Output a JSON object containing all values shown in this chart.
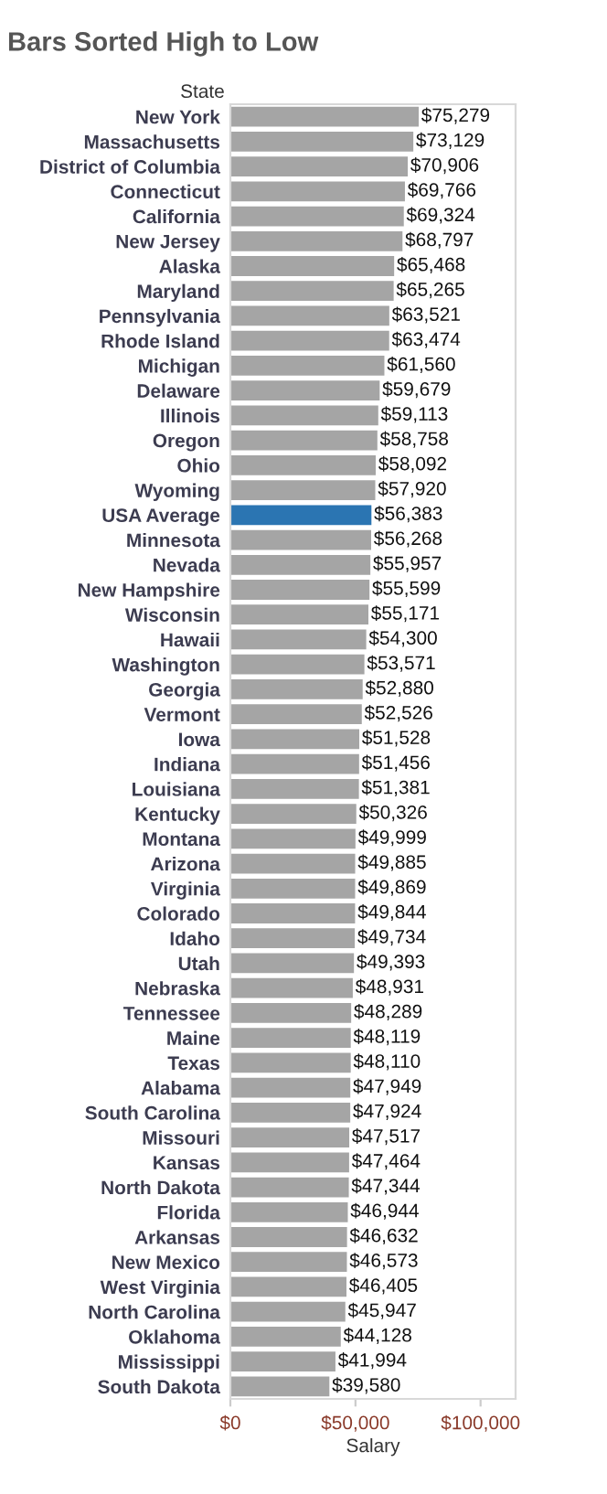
{
  "chart_data": {
    "type": "bar",
    "orientation": "horizontal",
    "title": "Bars Sorted High to Low",
    "ylabel": "State",
    "xlabel": "Salary",
    "categories": [
      "New York",
      "Massachusetts",
      "District of Columbia",
      "Connecticut",
      "California",
      "New Jersey",
      "Alaska",
      "Maryland",
      "Pennsylvania",
      "Rhode Island",
      "Michigan",
      "Delaware",
      "Illinois",
      "Oregon",
      "Ohio",
      "Wyoming",
      "USA Average",
      "Minnesota",
      "Nevada",
      "New Hampshire",
      "Wisconsin",
      "Hawaii",
      "Washington",
      "Georgia",
      "Vermont",
      "Iowa",
      "Indiana",
      "Louisiana",
      "Kentucky",
      "Montana",
      "Arizona",
      "Virginia",
      "Colorado",
      "Idaho",
      "Utah",
      "Nebraska",
      "Tennessee",
      "Maine",
      "Texas",
      "Alabama",
      "South Carolina",
      "Missouri",
      "Kansas",
      "North Dakota",
      "Florida",
      "Arkansas",
      "New Mexico",
      "West Virginia",
      "North Carolina",
      "Oklahoma",
      "Mississippi",
      "South Dakota"
    ],
    "values": [
      75279,
      73129,
      70906,
      69766,
      69324,
      68797,
      65468,
      65265,
      63521,
      63474,
      61560,
      59679,
      59113,
      58758,
      58092,
      57920,
      56383,
      56268,
      55957,
      55599,
      55171,
      54300,
      53571,
      52880,
      52526,
      51528,
      51456,
      51381,
      50326,
      49999,
      49885,
      49869,
      49844,
      49734,
      49393,
      48931,
      48289,
      48119,
      48110,
      47949,
      47924,
      47517,
      47464,
      47344,
      46944,
      46632,
      46573,
      46405,
      45947,
      44128,
      41994,
      39580
    ],
    "value_labels": [
      "$75,279",
      "$73,129",
      "$70,906",
      "$69,766",
      "$69,324",
      "$68,797",
      "$65,468",
      "$65,265",
      "$63,521",
      "$63,474",
      "$61,560",
      "$59,679",
      "$59,113",
      "$58,758",
      "$58,092",
      "$57,920",
      "$56,383",
      "$56,268",
      "$55,957",
      "$55,599",
      "$55,171",
      "$54,300",
      "$53,571",
      "$52,880",
      "$52,526",
      "$51,528",
      "$51,456",
      "$51,381",
      "$50,326",
      "$49,999",
      "$49,885",
      "$49,869",
      "$49,844",
      "$49,734",
      "$49,393",
      "$48,931",
      "$48,289",
      "$48,119",
      "$48,110",
      "$47,949",
      "$47,924",
      "$47,517",
      "$47,464",
      "$47,344",
      "$46,944",
      "$46,632",
      "$46,573",
      "$46,405",
      "$45,947",
      "$44,128",
      "$41,994",
      "$39,580"
    ],
    "colors": [
      "#a5a5a5",
      "#a5a5a5",
      "#a5a5a5",
      "#a5a5a5",
      "#a5a5a5",
      "#a5a5a5",
      "#a5a5a5",
      "#a5a5a5",
      "#a5a5a5",
      "#a5a5a5",
      "#a5a5a5",
      "#a5a5a5",
      "#a5a5a5",
      "#a5a5a5",
      "#a5a5a5",
      "#a5a5a5",
      "#2b75b2",
      "#a5a5a5",
      "#a5a5a5",
      "#a5a5a5",
      "#a5a5a5",
      "#a5a5a5",
      "#a5a5a5",
      "#a5a5a5",
      "#a5a5a5",
      "#a5a5a5",
      "#a5a5a5",
      "#a5a5a5",
      "#a5a5a5",
      "#a5a5a5",
      "#a5a5a5",
      "#a5a5a5",
      "#a5a5a5",
      "#a5a5a5",
      "#a5a5a5",
      "#a5a5a5",
      "#a5a5a5",
      "#a5a5a5",
      "#a5a5a5",
      "#a5a5a5",
      "#a5a5a5",
      "#a5a5a5",
      "#a5a5a5",
      "#a5a5a5",
      "#a5a5a5",
      "#a5a5a5",
      "#a5a5a5",
      "#a5a5a5",
      "#a5a5a5",
      "#a5a5a5",
      "#a5a5a5",
      "#a5a5a5"
    ],
    "xlim": [
      0,
      114000
    ],
    "xticks": [
      {
        "value": 0,
        "label": "$0"
      },
      {
        "value": 50000,
        "label": "$50,000"
      },
      {
        "value": 100000,
        "label": "$100,000"
      }
    ],
    "grid": false,
    "legend": false
  }
}
